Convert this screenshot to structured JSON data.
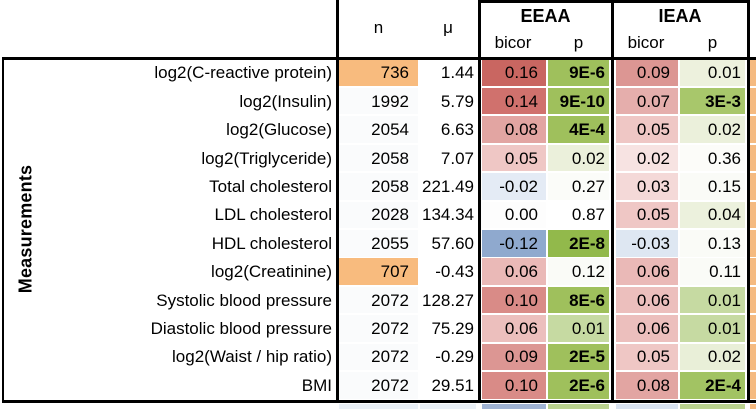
{
  "side_label": "Measurements",
  "header": {
    "n": "n",
    "mu": "μ",
    "eeaa": "EEAA",
    "ieaa": "IEAA",
    "bicor": "bicor",
    "p": "p"
  },
  "colors": {
    "orange_highlight": "#F8BB7E",
    "plain_n_cell": "#FAFBFC",
    "strong_green": "#9FC05C",
    "border_black": "#000000",
    "right_sliver": "#F5BA80"
  },
  "chart_data": {
    "type": "table",
    "row_group_label": "Measurements",
    "columns": [
      "n",
      "μ",
      "EEAA bicor",
      "EEAA p",
      "IEAA bicor",
      "IEAA p"
    ],
    "rows": [
      {
        "label": "log2(C-reactive protein)",
        "n": "736",
        "n_bg": "#F8BB7E",
        "mu": "1.44",
        "eeaa_bicor": "0.16",
        "eeaa_bicor_bg": "#C96661",
        "eeaa_p": "9E-6",
        "eeaa_p_bg": "#9FC05C",
        "eeaa_p_bold": true,
        "ieaa_bicor": "0.09",
        "ieaa_bicor_bg": "#DC9693",
        "ieaa_p": "0.01",
        "ieaa_p_bg": "#EDF1DD",
        "ieaa_p_bold": false
      },
      {
        "label": "log2(Insulin)",
        "n": "1992",
        "n_bg": "#FAFBFC",
        "mu": "5.79",
        "eeaa_bicor": "0.14",
        "eeaa_bicor_bg": "#D0716D",
        "eeaa_p": "9E-10",
        "eeaa_p_bg": "#9FC05C",
        "eeaa_p_bold": true,
        "ieaa_bicor": "0.07",
        "ieaa_bicor_bg": "#E5AEAC",
        "ieaa_p": "3E-3",
        "ieaa_p_bg": "#A8C76B",
        "ieaa_p_bold": true
      },
      {
        "label": "log2(Glucose)",
        "n": "2054",
        "n_bg": "#FAFBFC",
        "mu": "6.63",
        "eeaa_bicor": "0.08",
        "eeaa_bicor_bg": "#E2A5A2",
        "eeaa_p": "4E-4",
        "eeaa_p_bg": "#9FC05C",
        "eeaa_p_bold": true,
        "ieaa_bicor": "0.05",
        "ieaa_bicor_bg": "#EFC7C5",
        "ieaa_p": "0.02",
        "ieaa_p_bg": "#EBF0DB",
        "ieaa_p_bold": false
      },
      {
        "label": "log2(Triglyceride)",
        "n": "2058",
        "n_bg": "#FAFBFC",
        "mu": "7.07",
        "eeaa_bicor": "0.05",
        "eeaa_bicor_bg": "#EFC7C5",
        "eeaa_p": "0.02",
        "eeaa_p_bg": "#EBF0DB",
        "eeaa_p_bold": false,
        "ieaa_bicor": "0.02",
        "ieaa_bicor_bg": "#F7E3E2",
        "ieaa_p": "0.36",
        "ieaa_p_bg": "#FCFCF9",
        "ieaa_p_bold": false
      },
      {
        "label": "Total cholesterol",
        "n": "2058",
        "n_bg": "#FAFBFC",
        "mu": "221.49",
        "eeaa_bicor": "-0.02",
        "eeaa_bicor_bg": "#E4EBF5",
        "eeaa_p": "0.27",
        "eeaa_p_bg": "#FBFCF9",
        "eeaa_p_bold": false,
        "ieaa_bicor": "0.03",
        "ieaa_bicor_bg": "#F4D9D8",
        "ieaa_p": "0.15",
        "ieaa_p_bg": "#FAFBF7",
        "ieaa_p_bold": false
      },
      {
        "label": "LDL cholesterol",
        "n": "2028",
        "n_bg": "#FAFBFC",
        "mu": "134.34",
        "eeaa_bicor": "0.00",
        "eeaa_bicor_bg": "#FDFDFD",
        "eeaa_p": "0.87",
        "eeaa_p_bg": "#FFFFFF",
        "eeaa_p_bold": false,
        "ieaa_bicor": "0.05",
        "ieaa_bicor_bg": "#EFC7C5",
        "ieaa_p": "0.04",
        "ieaa_p_bg": "#ECF1DD",
        "ieaa_p_bold": false
      },
      {
        "label": "HDL cholesterol",
        "n": "2055",
        "n_bg": "#FAFBFC",
        "mu": "57.60",
        "eeaa_bicor": "-0.12",
        "eeaa_bicor_bg": "#8FA9CE",
        "eeaa_p": "2E-8",
        "eeaa_p_bg": "#92B94B",
        "eeaa_p_bold": true,
        "ieaa_bicor": "-0.03",
        "ieaa_bicor_bg": "#DEE7F2",
        "ieaa_p": "0.13",
        "ieaa_p_bg": "#FAFBF7",
        "ieaa_p_bold": false
      },
      {
        "label": "log2(Creatinine)",
        "n": "707",
        "n_bg": "#F8BB7E",
        "mu": "-0.43",
        "eeaa_bicor": "0.06",
        "eeaa_bicor_bg": "#EAB9B7",
        "eeaa_p": "0.12",
        "eeaa_p_bg": "#FAFBF7",
        "eeaa_p_bold": false,
        "ieaa_bicor": "0.06",
        "ieaa_bicor_bg": "#EAB9B7",
        "ieaa_p": "0.11",
        "ieaa_p_bg": "#FAFBF7",
        "ieaa_p_bold": false
      },
      {
        "label": "Systolic blood pressure",
        "n": "2072",
        "n_bg": "#FAFBFC",
        "mu": "128.27",
        "eeaa_bicor": "0.10",
        "eeaa_bicor_bg": "#D98B87",
        "eeaa_p": "8E-6",
        "eeaa_p_bg": "#9FC05C",
        "eeaa_p_bold": true,
        "ieaa_bicor": "0.06",
        "ieaa_bicor_bg": "#ECBFBD",
        "ieaa_p": "0.01",
        "ieaa_p_bg": "#C6DAA2",
        "ieaa_p_bold": false
      },
      {
        "label": "Diastolic blood pressure",
        "n": "2072",
        "n_bg": "#FAFBFC",
        "mu": "75.29",
        "eeaa_bicor": "0.06",
        "eeaa_bicor_bg": "#ECBFBD",
        "eeaa_p": "0.01",
        "eeaa_p_bg": "#C6DAA2",
        "eeaa_p_bold": false,
        "ieaa_bicor": "0.06",
        "ieaa_bicor_bg": "#ECBFBD",
        "ieaa_p": "0.01",
        "ieaa_p_bg": "#C6DAA2",
        "ieaa_p_bold": false
      },
      {
        "label": "log2(Waist / hip ratio)",
        "n": "2072",
        "n_bg": "#FAFBFC",
        "mu": "-0.29",
        "eeaa_bicor": "0.09",
        "eeaa_bicor_bg": "#DC9693",
        "eeaa_p": "2E-5",
        "eeaa_p_bg": "#9FC05C",
        "eeaa_p_bold": true,
        "ieaa_bicor": "0.05",
        "ieaa_bicor_bg": "#EFC7C5",
        "ieaa_p": "0.02",
        "ieaa_p_bg": "#E9EFD8",
        "ieaa_p_bold": false
      },
      {
        "label": "BMI",
        "n": "2072",
        "n_bg": "#FAFBFC",
        "mu": "29.51",
        "eeaa_bicor": "0.10",
        "eeaa_bicor_bg": "#D98B87",
        "eeaa_p": "2E-6",
        "eeaa_p_bg": "#9FC05C",
        "eeaa_p_bold": true,
        "ieaa_bicor": "0.08",
        "ieaa_bicor_bg": "#E2A5A2",
        "ieaa_p": "2E-4",
        "ieaa_p_bg": "#A2C363",
        "ieaa_p_bold": true
      }
    ],
    "cropped_next_row_colors": {
      "n": "#EAF0F7",
      "mu": "#EAF0F7",
      "eeaa_bicor": "#9FB3D4",
      "eeaa_p": "#B9D18E",
      "ieaa_bicor": "#D8E2F0",
      "ieaa_p": "#B9D18E",
      "right_sliver": "#F5BA80"
    }
  }
}
